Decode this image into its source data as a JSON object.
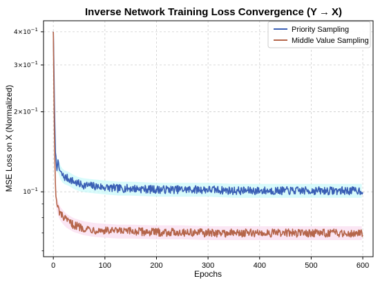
{
  "chart_data": {
    "type": "line",
    "title": "Inverse Network Training Loss Convergence (Y → X)",
    "xlabel": "Epochs",
    "ylabel": "MSE Loss on X (Normalized)",
    "xlim": [
      -19,
      620
    ],
    "ylim": [
      0.057,
      0.44
    ],
    "yscale": "log",
    "grid": true,
    "legend_position": "top-right",
    "x_ticks": [
      0,
      100,
      200,
      300,
      400,
      500,
      600
    ],
    "y_ticks": [
      {
        "value": 0.1,
        "base": "10",
        "exp": "−1"
      },
      {
        "value": 0.2,
        "base": "2×10",
        "exp": "−1"
      },
      {
        "value": 0.3,
        "base": "3×10",
        "exp": "−1"
      },
      {
        "value": 0.4,
        "base": "4×10",
        "exp": "−1"
      }
    ],
    "series": [
      {
        "name": "Priority Sampling",
        "color": "#3a5fb5",
        "band_color": "#c8fafa",
        "x": [
          0,
          1,
          2,
          3,
          4,
          5,
          6,
          7,
          8,
          10,
          12,
          15,
          20,
          25,
          30,
          40,
          50,
          60,
          80,
          100,
          125,
          150,
          200,
          250,
          300,
          350,
          400,
          450,
          500,
          550,
          600
        ],
        "y": [
          0.4,
          0.31,
          0.22,
          0.17,
          0.145,
          0.133,
          0.127,
          0.124,
          0.13,
          0.125,
          0.121,
          0.117,
          0.114,
          0.113,
          0.112,
          0.109,
          0.107,
          0.106,
          0.105,
          0.104,
          0.103,
          0.103,
          0.102,
          0.102,
          0.102,
          0.101,
          0.101,
          0.101,
          0.101,
          0.101,
          0.101
        ]
      },
      {
        "name": "Middle Value Sampling",
        "color": "#b5654a",
        "band_color": "#fadcf0",
        "x": [
          0,
          1,
          2,
          3,
          4,
          5,
          6,
          7,
          8,
          10,
          12,
          15,
          20,
          25,
          30,
          40,
          50,
          60,
          80,
          100,
          125,
          150,
          200,
          250,
          300,
          350,
          400,
          450,
          500,
          550,
          600
        ],
        "y": [
          0.4,
          0.26,
          0.17,
          0.13,
          0.108,
          0.097,
          0.091,
          0.089,
          0.088,
          0.086,
          0.084,
          0.082,
          0.08,
          0.078,
          0.077,
          0.075,
          0.074,
          0.073,
          0.072,
          0.0715,
          0.071,
          0.071,
          0.0705,
          0.0705,
          0.07,
          0.07,
          0.07,
          0.07,
          0.07,
          0.07,
          0.07
        ]
      }
    ]
  }
}
